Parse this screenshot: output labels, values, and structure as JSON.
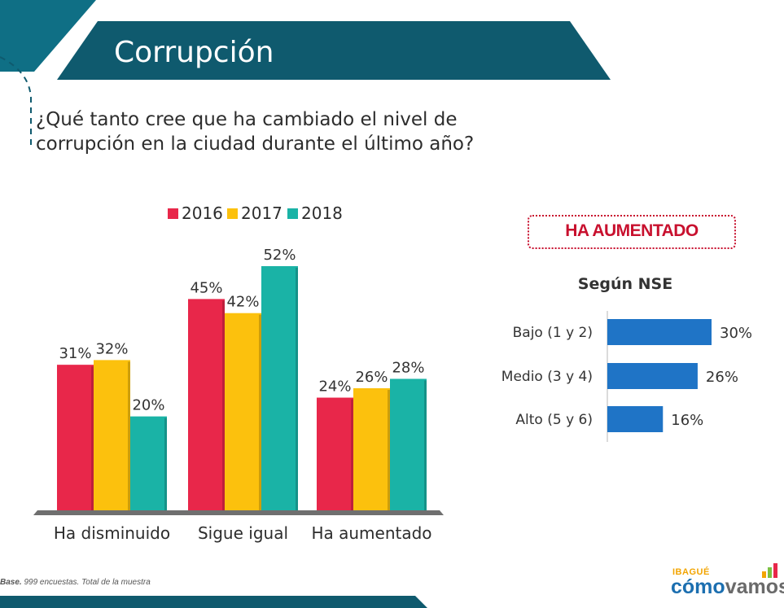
{
  "header": {
    "title": "Corrupción"
  },
  "question": {
    "line1": "¿Qué tanto cree que ha cambiado el nivel de",
    "line2": "corrupción en la ciudad durante el último año?"
  },
  "colors": {
    "y2016": "#e8274a",
    "y2017": "#fcc10d",
    "y2018": "#1ab3a6",
    "nse_bar": "#1f74c6",
    "banner": "#0f5a6e",
    "accent": "#c8102e"
  },
  "chart_data": [
    {
      "type": "bar",
      "categories": [
        "Ha disminuido",
        "Sigue igual",
        "Ha aumentado"
      ],
      "series": [
        {
          "name": "2016",
          "values": [
            31,
            45,
            24
          ]
        },
        {
          "name": "2017",
          "values": [
            32,
            42,
            26
          ]
        },
        {
          "name": "2018",
          "values": [
            20,
            52,
            28
          ]
        }
      ],
      "value_suffix": "%",
      "legend_position": "top",
      "ylim": [
        0,
        60
      ]
    },
    {
      "type": "bar",
      "orientation": "horizontal",
      "title": "HA AUMENTADO",
      "subtitle": "Según NSE",
      "categories": [
        "Bajo (1 y 2)",
        "Medio (3 y 4)",
        "Alto (5 y 6)"
      ],
      "values": [
        30,
        26,
        16
      ],
      "value_suffix": "%",
      "xlim": [
        0,
        40
      ]
    }
  ],
  "footer": {
    "base_label": "Base.",
    "base_text": "999 encuestas. Total de la muestra"
  },
  "logo": {
    "city": "IBAGUÉ",
    "brand_part1": "cómo",
    "brand_part2": "vamos",
    "icon": "bar-chart-icon"
  }
}
